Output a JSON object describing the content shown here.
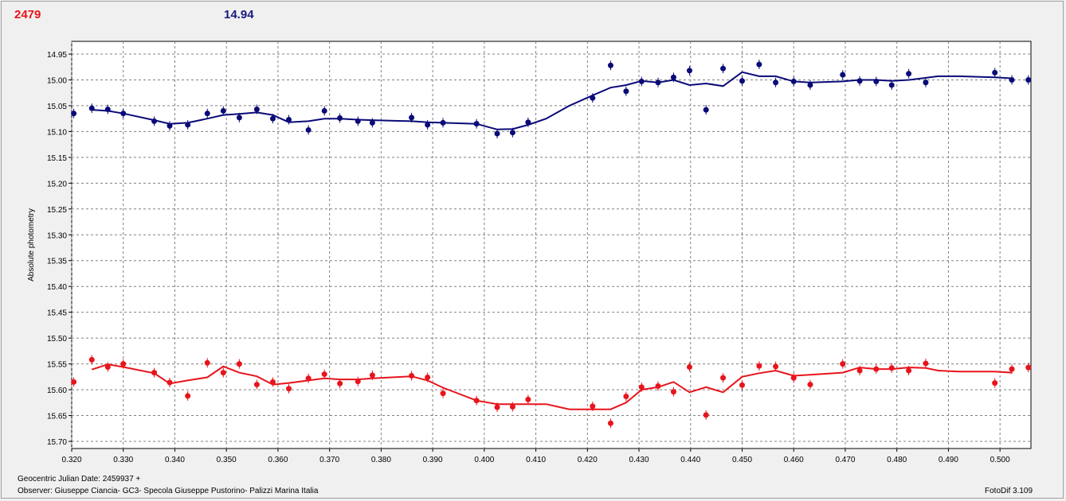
{
  "header": {
    "left_value": "2479",
    "center_value": "14.94"
  },
  "footer": {
    "julian_date": "Geocentric Julian Date: 2459937 +",
    "observer": "Observer: Giuseppe Ciancia- GC3- Specola Giuseppe Pustorino- Palizzi Marina Italia",
    "software": "FotoDif 3.109"
  },
  "colors": {
    "red": "#e8141c",
    "blue": "#0a0a78"
  },
  "chart_data": {
    "type": "scatter",
    "ylabel": "Absolute photometry",
    "xlabel": "",
    "xlim": [
      0.32,
      0.506
    ],
    "ylim": [
      15.71,
      14.925
    ],
    "y_inverted": true,
    "grid": true,
    "x_ticks": [
      "0.320",
      "0.330",
      "0.340",
      "0.350",
      "0.360",
      "0.370",
      "0.380",
      "0.390",
      "0.400",
      "0.410",
      "0.420",
      "0.430",
      "0.440",
      "0.450",
      "0.460",
      "0.470",
      "0.480",
      "0.490",
      "0.500"
    ],
    "y_ticks": [
      "14.95",
      "15.00",
      "15.05",
      "15.10",
      "15.15",
      "15.20",
      "15.25",
      "15.30",
      "15.35",
      "15.40",
      "15.45",
      "15.50",
      "15.55",
      "15.60",
      "15.65",
      "15.70"
    ],
    "series": [
      {
        "color": "#0a0a78",
        "points": {
          "x": [
            0.3204,
            0.3239,
            0.327,
            0.33,
            0.336,
            0.339,
            0.3425,
            0.3463,
            0.3494,
            0.3525,
            0.3559,
            0.359,
            0.3621,
            0.3659,
            0.369,
            0.372,
            0.3755,
            0.3783,
            0.3859,
            0.389,
            0.392,
            0.3985,
            0.4025,
            0.4055,
            0.4085,
            0.421,
            0.4245,
            0.4275,
            0.4305,
            0.4337,
            0.4367,
            0.4398,
            0.443,
            0.4463,
            0.45,
            0.4533,
            0.4565,
            0.46,
            0.4632,
            0.4695,
            0.4728,
            0.476,
            0.479,
            0.4823,
            0.4856,
            0.499,
            0.5023,
            0.5055
          ],
          "y": [
            15.065,
            15.055,
            15.057,
            15.065,
            15.08,
            15.089,
            15.087,
            15.065,
            15.06,
            15.073,
            15.057,
            15.075,
            15.077,
            15.097,
            15.06,
            15.074,
            15.08,
            15.083,
            15.073,
            15.087,
            15.083,
            15.085,
            15.104,
            15.102,
            15.082,
            15.035,
            14.972,
            15.022,
            15.003,
            15.005,
            14.995,
            14.982,
            15.058,
            14.978,
            15.002,
            14.97,
            15.005,
            15.003,
            15.01,
            14.99,
            15.002,
            15.003,
            15.01,
            14.988,
            15.005,
            14.986,
            15.0,
            15.0
          ]
        },
        "line": {
          "x": [
            0.3239,
            0.327,
            0.33,
            0.336,
            0.339,
            0.3425,
            0.3463,
            0.3494,
            0.3525,
            0.3559,
            0.359,
            0.3621,
            0.3659,
            0.369,
            0.372,
            0.3755,
            0.3783,
            0.3859,
            0.389,
            0.392,
            0.3985,
            0.4025,
            0.4055,
            0.4085,
            0.412,
            0.4165,
            0.421,
            0.4245,
            0.4275,
            0.4305,
            0.4337,
            0.4367,
            0.4398,
            0.443,
            0.4463,
            0.45,
            0.4533,
            0.4565,
            0.46,
            0.4632,
            0.4695,
            0.4728,
            0.476,
            0.479,
            0.4823,
            0.4856,
            0.488,
            0.492,
            0.499,
            0.5023
          ],
          "y": [
            15.058,
            15.06,
            15.065,
            15.078,
            15.085,
            15.083,
            15.075,
            15.068,
            15.066,
            15.063,
            15.068,
            15.082,
            15.08,
            15.075,
            15.075,
            15.077,
            15.078,
            15.08,
            15.082,
            15.083,
            15.085,
            15.096,
            15.095,
            15.087,
            15.075,
            15.05,
            15.03,
            15.015,
            15.01,
            15.002,
            15.005,
            15.0,
            15.01,
            15.007,
            15.012,
            14.985,
            14.993,
            14.993,
            15.003,
            15.005,
            15.003,
            15.0,
            15.0,
            15.002,
            15.0,
            14.996,
            14.993,
            14.993,
            14.995,
            14.997
          ]
        }
      },
      {
        "color": "#e8141c",
        "points": {
          "x": [
            0.3204,
            0.3239,
            0.327,
            0.33,
            0.336,
            0.339,
            0.3425,
            0.3463,
            0.3494,
            0.3525,
            0.3559,
            0.359,
            0.3621,
            0.3659,
            0.369,
            0.372,
            0.3755,
            0.3783,
            0.3859,
            0.389,
            0.392,
            0.3985,
            0.4025,
            0.4055,
            0.4085,
            0.421,
            0.4245,
            0.4275,
            0.4305,
            0.4337,
            0.4367,
            0.4398,
            0.443,
            0.4463,
            0.45,
            0.4533,
            0.4565,
            0.46,
            0.4632,
            0.4695,
            0.4728,
            0.476,
            0.479,
            0.4823,
            0.4856,
            0.499,
            0.5023,
            0.5055
          ],
          "y": [
            15.585,
            15.542,
            15.556,
            15.55,
            15.567,
            15.586,
            15.612,
            15.548,
            15.567,
            15.55,
            15.59,
            15.585,
            15.598,
            15.578,
            15.57,
            15.588,
            15.584,
            15.572,
            15.573,
            15.576,
            15.607,
            15.621,
            15.634,
            15.633,
            15.619,
            15.632,
            15.665,
            15.613,
            15.595,
            15.593,
            15.604,
            15.556,
            15.649,
            15.577,
            15.591,
            15.554,
            15.555,
            15.577,
            15.59,
            15.55,
            15.563,
            15.56,
            15.558,
            15.563,
            15.549,
            15.587,
            15.56,
            15.557
          ]
        },
        "line": {
          "x": [
            0.3239,
            0.327,
            0.33,
            0.336,
            0.339,
            0.3425,
            0.3463,
            0.3494,
            0.3525,
            0.3559,
            0.359,
            0.3621,
            0.3659,
            0.369,
            0.372,
            0.3755,
            0.3783,
            0.3859,
            0.389,
            0.392,
            0.3985,
            0.4025,
            0.4055,
            0.4085,
            0.412,
            0.4165,
            0.421,
            0.4245,
            0.4275,
            0.4305,
            0.4337,
            0.4367,
            0.4398,
            0.443,
            0.4463,
            0.45,
            0.4533,
            0.4565,
            0.46,
            0.4632,
            0.4695,
            0.4728,
            0.476,
            0.479,
            0.4823,
            0.4856,
            0.488,
            0.492,
            0.499,
            0.5023
          ],
          "y": [
            15.561,
            15.551,
            15.556,
            15.568,
            15.588,
            15.582,
            15.576,
            15.555,
            15.567,
            15.574,
            15.59,
            15.587,
            15.582,
            15.578,
            15.58,
            15.58,
            15.578,
            15.574,
            15.582,
            15.596,
            15.621,
            15.628,
            15.628,
            15.628,
            15.628,
            15.638,
            15.638,
            15.638,
            15.625,
            15.6,
            15.595,
            15.585,
            15.605,
            15.595,
            15.605,
            15.575,
            15.568,
            15.563,
            15.573,
            15.571,
            15.567,
            15.557,
            15.56,
            15.56,
            15.557,
            15.558,
            15.563,
            15.565,
            15.565,
            15.567
          ]
        }
      }
    ]
  }
}
